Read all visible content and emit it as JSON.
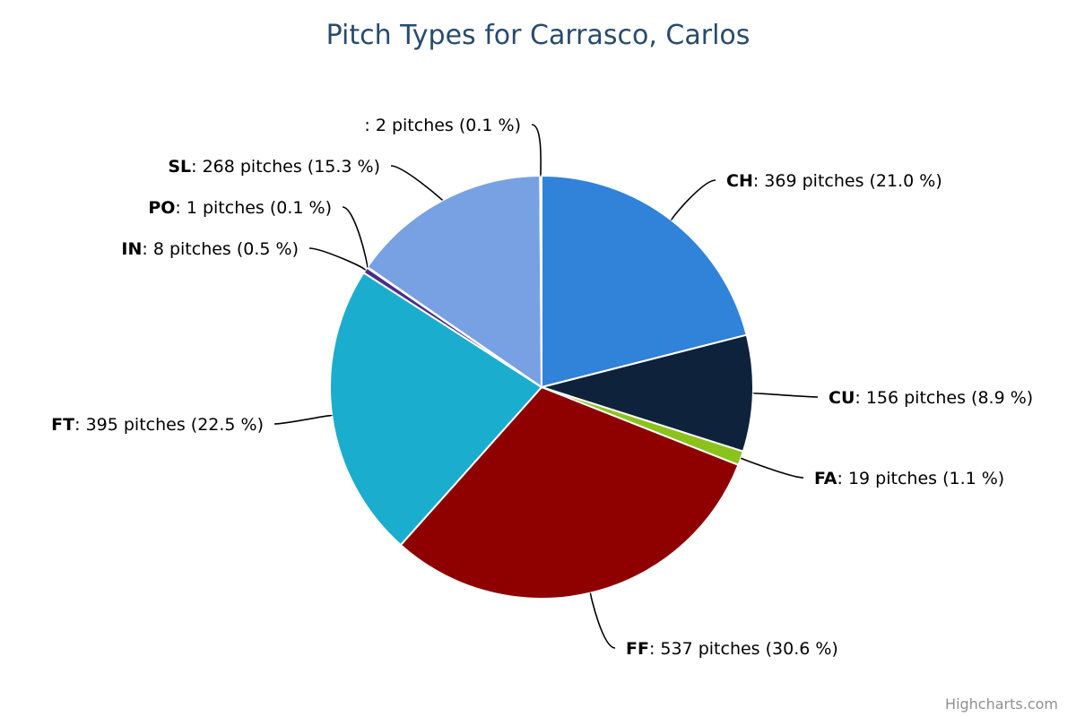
{
  "chart_data": {
    "type": "pie",
    "title": "Pitch Types for Carrasco, Carlos",
    "credit": "Highcharts.com",
    "slices": [
      {
        "name": "CH",
        "count": 369,
        "percent": 21.0,
        "label": "369 pitches (21.0 %)",
        "color": "#3182d9"
      },
      {
        "name": "CU",
        "count": 156,
        "percent": 8.9,
        "label": "156 pitches (8.9 %)",
        "color": "#0f223b"
      },
      {
        "name": "FA",
        "count": 19,
        "percent": 1.1,
        "label": "19 pitches (1.1 %)",
        "color": "#8cc21c"
      },
      {
        "name": "FF",
        "count": 537,
        "percent": 30.6,
        "label": "537 pitches (30.6 %)",
        "color": "#8f0000"
      },
      {
        "name": "FT",
        "count": 395,
        "percent": 22.5,
        "label": "395 pitches (22.5 %)",
        "color": "#1badce"
      },
      {
        "name": "IN",
        "count": 8,
        "percent": 0.5,
        "label": "8 pitches (0.5 %)",
        "color": "#4b2c8a"
      },
      {
        "name": "PO",
        "count": 1,
        "percent": 0.1,
        "label": "1 pitches (0.1 %)",
        "color": "#c96fc9"
      },
      {
        "name": "SL",
        "count": 268,
        "percent": 15.3,
        "label": "268 pitches (15.3 %)",
        "color": "#78a1e4"
      },
      {
        "name": "",
        "count": 2,
        "percent": 0.1,
        "label": "2 pitches (0.1 %)",
        "color": "#bbbbbb"
      }
    ]
  }
}
